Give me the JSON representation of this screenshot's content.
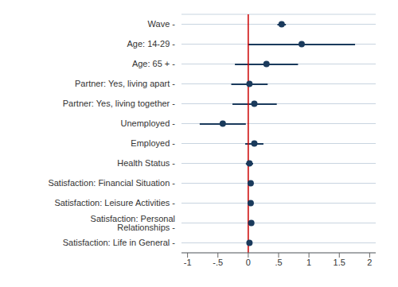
{
  "chart_data": {
    "type": "scatter",
    "orientation": "horizontal",
    "categories": [
      "Wave -",
      "Age: 14-29 -",
      "Age: 65 + -",
      "Partner: Yes, living apart -",
      "Partner: Yes, living together -",
      "Unemployed -",
      "Employed -",
      "Health Status -",
      "Satisfaction: Financial Situation -",
      "Satisfaction: Leisure Activities -",
      "Satisfaction: Personal Relationships -",
      "Satisfaction: Life in General -"
    ],
    "values": [
      0.55,
      0.88,
      0.3,
      0.02,
      0.1,
      -0.42,
      0.1,
      0.02,
      0.04,
      0.04,
      0.05,
      0.02
    ],
    "ci_low": [
      0.48,
      0.0,
      -0.22,
      -0.28,
      -0.26,
      -0.8,
      -0.05,
      -0.04,
      0.02,
      0.02,
      0.03,
      -0.01
    ],
    "ci_high": [
      0.62,
      1.76,
      0.82,
      0.32,
      0.47,
      -0.04,
      0.25,
      0.08,
      0.06,
      0.06,
      0.07,
      0.05
    ],
    "color": "#1a3a5c",
    "reference_line": {
      "value": 0,
      "color": "#cc0000"
    },
    "xlim": [
      -1.1,
      2.1
    ],
    "xticks": [
      -1,
      {
        "value": -0.5,
        "label": "-.5"
      },
      0,
      {
        "value": 0.5,
        "label": ".5"
      },
      1,
      1.5,
      2
    ],
    "grid": true
  }
}
